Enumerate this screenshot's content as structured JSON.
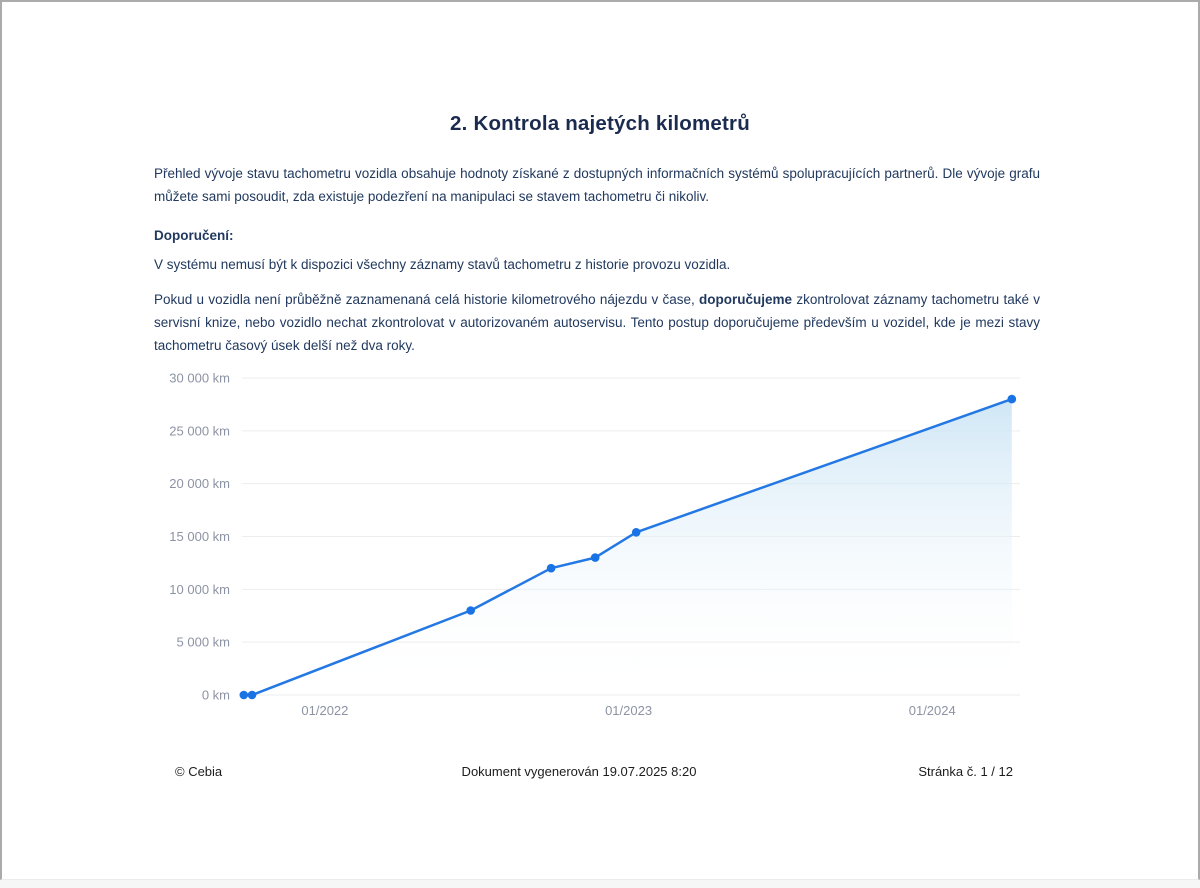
{
  "page": {
    "title": "2. Kontrola najetých kilometrů",
    "paragraph_intro": "Přehled vývoje stavu tachometru vozidla obsahuje hodnoty získané z dostupných informačních systémů spolupracujících partnerů. Dle vývoje grafu můžete sami posoudit, zda existuje podezření na manipulaci se stavem tachometru či nikoliv.",
    "recommendation_label": "Doporučení:",
    "paragraph_system_note": "V systému nemusí být k dispozici všechny záznamy stavů tachometru z historie provozu vozidla.",
    "paragraph_advice_part1": "Pokud u vozidla není průběžně zaznamenaná celá historie kilometrového nájezdu v čase, ",
    "paragraph_advice_bold": "doporučujeme",
    "paragraph_advice_part2": " zkontrolovat záznamy tachometru také v servisní knize, nebo vozidlo nechat zkontrolovat v autorizovaném autoservisu. Tento postup doporučujeme především u vozidel, kde je mezi stavy tachometru časový úsek delší než dva roky."
  },
  "footer": {
    "copyright": "© Cebia",
    "generated": "Dokument vygenerován 19.07.2025 8:20",
    "page_number": "Stránka č. 1 / 12"
  },
  "chart_data": {
    "type": "line",
    "title": "",
    "xlabel": "",
    "ylabel": "",
    "legend": "none",
    "grid": "horizontal",
    "xlim": [
      2021.727,
      2024.289
    ],
    "ylim": [
      0,
      30000
    ],
    "x_ticks": [
      {
        "value": 2022,
        "label": "01/2022"
      },
      {
        "value": 2023,
        "label": "01/2023"
      },
      {
        "value": 2024,
        "label": "01/2024"
      }
    ],
    "y_ticks": [
      {
        "value": 0,
        "label": "0 km"
      },
      {
        "value": 5000,
        "label": "5 000 km"
      },
      {
        "value": 10000,
        "label": "10 000 km"
      },
      {
        "value": 15000,
        "label": "15 000 km"
      },
      {
        "value": 20000,
        "label": "20 000 km"
      },
      {
        "value": 25000,
        "label": "25 000 km"
      },
      {
        "value": 30000,
        "label": "30 000 km"
      }
    ],
    "points": [
      {
        "x": 2021.733,
        "km": 0
      },
      {
        "x": 2021.76,
        "km": 0
      },
      {
        "x": 2022.48,
        "km": 8000
      },
      {
        "x": 2022.745,
        "km": 12000
      },
      {
        "x": 2022.89,
        "km": 13000
      },
      {
        "x": 2023.025,
        "km": 15400
      },
      {
        "x": 2024.262,
        "km": 28000
      }
    ],
    "line_color": "#2478e3",
    "point_color": "#1a73e4",
    "area_top_color": "#c7e2f4",
    "axis_label_color": "#8c93a4"
  },
  "colors": {
    "text_navy": "#21395f",
    "title_navy": "#1b2b4f",
    "accent_blue": "#2478e3",
    "page_border": "#ababab"
  }
}
